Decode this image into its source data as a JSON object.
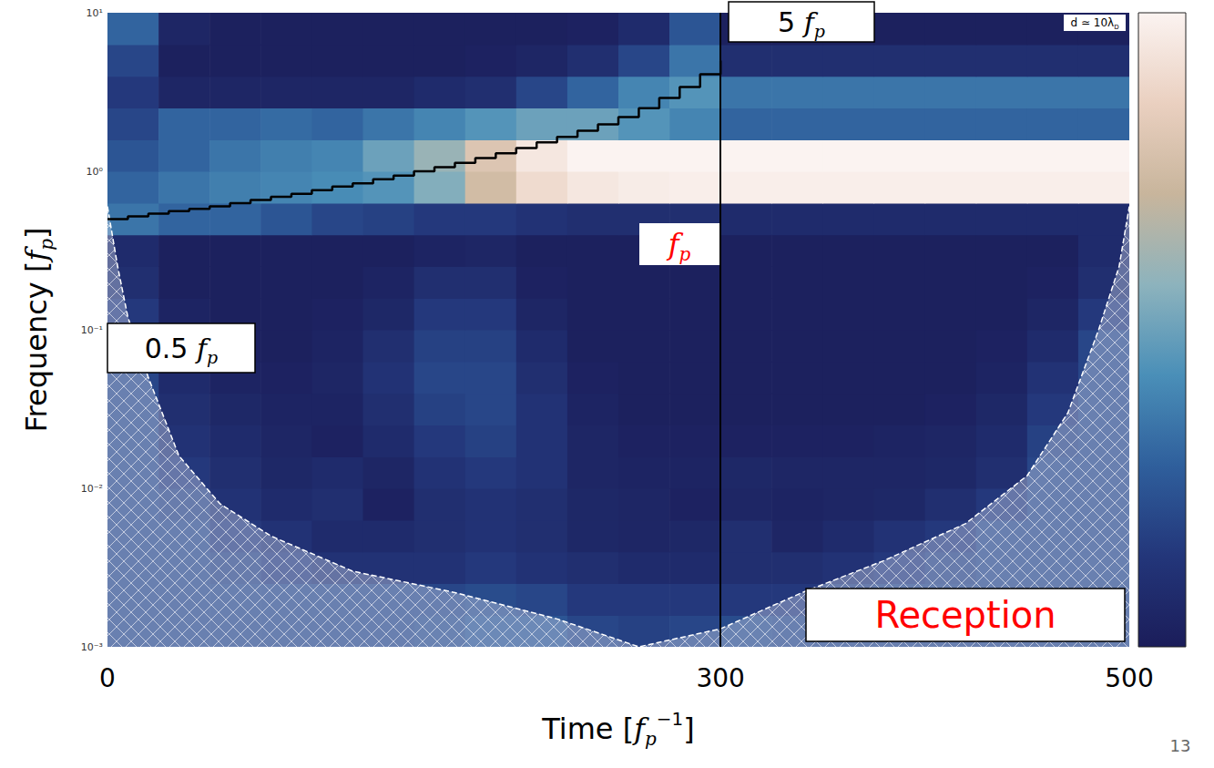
{
  "chart_data": {
    "type": "heatmap",
    "log": "y",
    "xlim": [
      0,
      500
    ],
    "xticks": [
      0,
      300,
      500
    ],
    "ylim": [
      0.001,
      10
    ],
    "yticks": [
      {
        "value": 0.001,
        "label": "10⁻³"
      },
      {
        "value": 0.01,
        "label": "10⁻²"
      },
      {
        "value": 0.1,
        "label": "10⁻¹"
      },
      {
        "value": 1,
        "label": "10⁰"
      },
      {
        "value": 10,
        "label": "10¹"
      }
    ],
    "x_label": [
      {
        "text": "Time ["
      },
      {
        "text": "f",
        "style": "italic"
      },
      {
        "text": "p",
        "style": "italic_sub"
      },
      {
        "text": "−1",
        "style": "sup"
      },
      {
        "text": "]"
      }
    ],
    "y_label": [
      {
        "text": "Frequency ["
      },
      {
        "text": "f",
        "style": "italic"
      },
      {
        "text": "p",
        "style": "italic_sub"
      },
      {
        "text": "]"
      }
    ],
    "heatmap": {
      "x_edges": [
        0,
        25,
        50,
        75,
        100,
        125,
        150,
        175,
        200,
        225,
        250,
        275,
        300,
        325,
        350,
        375,
        400,
        425,
        450,
        475,
        500
      ],
      "y_edges": [
        0.001,
        0.00158,
        0.00251,
        0.00398,
        0.00631,
        0.01,
        0.0158,
        0.0251,
        0.0398,
        0.0631,
        0.1,
        0.158,
        0.251,
        0.398,
        0.631,
        1,
        1.58,
        2.51,
        3.98,
        6.31,
        10
      ],
      "values": [
        [
          0.2,
          0.2,
          0.2,
          0.2,
          0.2,
          0.2,
          0.22,
          0.25,
          0.25,
          0.2,
          0.18,
          0.2,
          0.22,
          0.2,
          0.2,
          0.2,
          0.2,
          0.2,
          0.2,
          0.2
        ],
        [
          0.2,
          0.2,
          0.2,
          0.2,
          0.2,
          0.2,
          0.2,
          0.22,
          0.2,
          0.15,
          0.15,
          0.15,
          0.15,
          0.15,
          0.18,
          0.2,
          0.2,
          0.2,
          0.2,
          0.2
        ],
        [
          0.2,
          0.2,
          0.18,
          0.15,
          0.12,
          0.12,
          0.12,
          0.15,
          0.12,
          0.1,
          0.08,
          0.08,
          0.1,
          0.1,
          0.12,
          0.15,
          0.18,
          0.2,
          0.2,
          0.2
        ],
        [
          0.2,
          0.2,
          0.15,
          0.12,
          0.08,
          0.08,
          0.1,
          0.12,
          0.1,
          0.06,
          0.05,
          0.06,
          0.1,
          0.05,
          0.08,
          0.12,
          0.15,
          0.2,
          0.2,
          0.2
        ],
        [
          0.2,
          0.18,
          0.12,
          0.08,
          0.1,
          0.03,
          0.1,
          0.12,
          0.1,
          0.06,
          0.05,
          0.03,
          0.05,
          0.04,
          0.05,
          0.06,
          0.1,
          0.15,
          0.2,
          0.2
        ],
        [
          0.2,
          0.15,
          0.1,
          0.06,
          0.08,
          0.05,
          0.12,
          0.15,
          0.12,
          0.05,
          0.04,
          0.04,
          0.06,
          0.05,
          0.05,
          0.05,
          0.06,
          0.1,
          0.2,
          0.2
        ],
        [
          0.2,
          0.12,
          0.08,
          0.05,
          0.03,
          0.08,
          0.15,
          0.18,
          0.12,
          0.05,
          0.03,
          0.03,
          0.03,
          0.03,
          0.03,
          0.04,
          0.05,
          0.08,
          0.18,
          0.2
        ],
        [
          0.2,
          0.1,
          0.06,
          0.04,
          0.04,
          0.1,
          0.18,
          0.2,
          0.12,
          0.04,
          0.02,
          0.02,
          0.02,
          0.02,
          0.02,
          0.02,
          0.03,
          0.06,
          0.15,
          0.2
        ],
        [
          0.2,
          0.08,
          0.04,
          0.03,
          0.05,
          0.12,
          0.2,
          0.2,
          0.1,
          0.03,
          0.02,
          0.02,
          0.02,
          0.02,
          0.02,
          0.02,
          0.02,
          0.04,
          0.12,
          0.2
        ],
        [
          0.18,
          0.05,
          0.03,
          0.02,
          0.04,
          0.1,
          0.18,
          0.18,
          0.08,
          0.02,
          0.02,
          0.02,
          0.02,
          0.02,
          0.02,
          0.02,
          0.02,
          0.03,
          0.08,
          0.2
        ],
        [
          0.15,
          0.04,
          0.02,
          0.02,
          0.03,
          0.06,
          0.15,
          0.15,
          0.05,
          0.02,
          0.02,
          0.02,
          0.02,
          0.02,
          0.02,
          0.02,
          0.02,
          0.02,
          0.05,
          0.15
        ],
        [
          0.1,
          0.02,
          0.02,
          0.02,
          0.02,
          0.04,
          0.1,
          0.1,
          0.03,
          0.02,
          0.02,
          0.02,
          0.02,
          0.02,
          0.02,
          0.02,
          0.02,
          0.02,
          0.03,
          0.1
        ],
        [
          0.08,
          0.02,
          0.02,
          0.02,
          0.02,
          0.02,
          0.04,
          0.05,
          0.02,
          0.02,
          0.02,
          0.02,
          0.02,
          0.02,
          0.02,
          0.02,
          0.02,
          0.02,
          0.02,
          0.08
        ],
        [
          0.35,
          0.3,
          0.3,
          0.25,
          0.2,
          0.18,
          0.15,
          0.15,
          0.12,
          0.1,
          0.1,
          0.1,
          0.08,
          0.08,
          0.08,
          0.08,
          0.08,
          0.08,
          0.08,
          0.08
        ],
        [
          0.3,
          0.35,
          0.38,
          0.4,
          0.42,
          0.45,
          0.55,
          0.75,
          0.9,
          0.95,
          0.97,
          0.98,
          0.98,
          0.98,
          0.98,
          0.98,
          0.98,
          0.98,
          0.98,
          0.98
        ],
        [
          0.25,
          0.3,
          0.35,
          0.38,
          0.4,
          0.5,
          0.6,
          0.8,
          0.95,
          1,
          1,
          1,
          1,
          1,
          1,
          1,
          1,
          1,
          1,
          1
        ],
        [
          0.2,
          0.3,
          0.3,
          0.32,
          0.3,
          0.35,
          0.4,
          0.45,
          0.5,
          0.5,
          0.45,
          0.4,
          0.3,
          0.3,
          0.3,
          0.3,
          0.3,
          0.3,
          0.3,
          0.3
        ],
        [
          0.15,
          0.05,
          0.05,
          0.05,
          0.05,
          0.05,
          0.08,
          0.1,
          0.2,
          0.3,
          0.4,
          0.45,
          0.35,
          0.35,
          0.35,
          0.35,
          0.35,
          0.35,
          0.35,
          0.35
        ],
        [
          0.2,
          0.02,
          0.02,
          0.02,
          0.02,
          0.02,
          0.02,
          0.03,
          0.05,
          0.1,
          0.2,
          0.35,
          0.1,
          0.1,
          0.1,
          0.1,
          0.1,
          0.1,
          0.1,
          0.1
        ],
        [
          0.3,
          0.05,
          0.02,
          0.02,
          0.02,
          0.02,
          0.02,
          0.02,
          0.02,
          0.03,
          0.08,
          0.25,
          0.02,
          0.02,
          0.02,
          0.02,
          0.02,
          0.02,
          0.02,
          0.02
        ]
      ]
    },
    "colorbar": {
      "range": [
        0,
        1
      ]
    },
    "chirp": {
      "x": [
        0,
        10,
        20,
        30,
        40,
        50,
        60,
        70,
        80,
        90,
        100,
        110,
        120,
        130,
        140,
        150,
        160,
        170,
        180,
        190,
        200,
        210,
        220,
        230,
        240,
        250,
        260,
        270,
        280,
        290,
        300
      ],
      "values": [
        0.5,
        0.52,
        0.54,
        0.56,
        0.58,
        0.6,
        0.63,
        0.66,
        0.69,
        0.72,
        0.76,
        0.8,
        0.84,
        0.89,
        0.94,
        1,
        1.06,
        1.13,
        1.21,
        1.3,
        1.4,
        1.52,
        1.65,
        1.8,
        1.98,
        2.2,
        2.5,
        2.9,
        3.4,
        4.1,
        5
      ],
      "color": "#000000",
      "line_style": "step"
    },
    "cone": {
      "x": [
        0,
        5,
        10,
        20,
        35,
        55,
        80,
        120,
        170,
        220,
        260,
        300,
        340,
        380,
        420,
        450,
        470,
        485,
        495,
        500
      ],
      "values": [
        0.6,
        0.25,
        0.12,
        0.05,
        0.016,
        0.008,
        0.005,
        0.003,
        0.0022,
        0.0015,
        0.001,
        0.0013,
        0.0022,
        0.0035,
        0.006,
        0.012,
        0.03,
        0.1,
        0.25,
        0.6
      ],
      "color": "#ffffff",
      "line_style": "dashed"
    },
    "vertical_line": {
      "x": 300,
      "color": "#000000"
    },
    "annotations": [
      {
        "segments": [
          {
            "text": "5 "
          },
          {
            "text": "f",
            "style": "italic"
          },
          {
            "text": "p",
            "style": "italic_sub"
          }
        ],
        "color": "#000000",
        "box": true
      },
      {
        "segments": [
          {
            "text": "0.5 "
          },
          {
            "text": "f",
            "style": "italic"
          },
          {
            "text": "p",
            "style": "italic_sub"
          }
        ],
        "color": "#000000",
        "box": true
      },
      {
        "segments": [
          {
            "text": "f",
            "style": "italic"
          },
          {
            "text": "p",
            "style": "italic_sub"
          }
        ],
        "color": "#ff0000",
        "box": false
      },
      {
        "segments": [
          {
            "text": "Reception"
          }
        ],
        "color": "#ff0000",
        "box": true
      },
      {
        "segments": [
          {
            "text": "d ≃ 10λ"
          },
          {
            "text": "D",
            "style": "sub"
          }
        ],
        "color": "#000000",
        "box": false
      }
    ],
    "page_number": "13"
  }
}
